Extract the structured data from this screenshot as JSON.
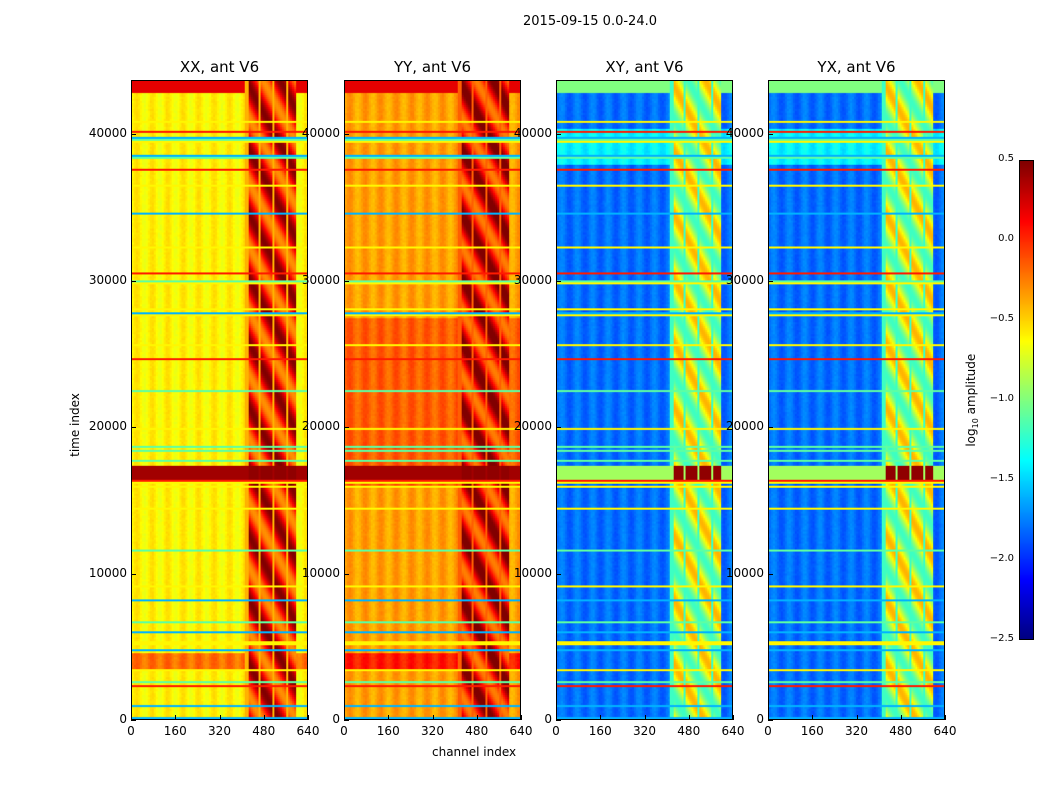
{
  "chart_data": {
    "type": "heatmap",
    "suptitle": "2015-09-15 0.0-24.0",
    "xlabel": "channel index",
    "ylabel": "time index",
    "xlim": [
      0,
      640
    ],
    "ylim": [
      0,
      43700
    ],
    "xticks": [
      "0",
      "160",
      "320",
      "480",
      "640"
    ],
    "xtick_values": [
      0,
      160,
      320,
      480,
      640
    ],
    "yticks": [
      "0",
      "10000",
      "20000",
      "30000",
      "40000"
    ],
    "ytick_values": [
      0,
      10000,
      20000,
      30000,
      40000
    ],
    "colorbar": {
      "label_main": "log",
      "label_sub": "10",
      "label_rest": " amplitude",
      "range": [
        -2.5,
        0.5
      ],
      "ticks": [
        "0.5",
        "0.0",
        "−0.5",
        "−1.0",
        "−1.5",
        "−2.0",
        "−2.5"
      ],
      "tick_values": [
        0.5,
        0.0,
        -0.5,
        -1.0,
        -1.5,
        -2.0,
        -2.5
      ],
      "colormap": "jet"
    },
    "panels": [
      {
        "title": "XX, ant V6",
        "base_level": -0.6,
        "rfi_level": 0.1,
        "band_level": 0.45,
        "band_off_level": 0.4
      },
      {
        "title": "YY, ant V6",
        "base_level": -0.35,
        "rfi_level": 0.15,
        "band_level": 0.45,
        "band_off_level": 0.4
      },
      {
        "title": "XY, ant V6",
        "base_level": -1.8,
        "rfi_level": -0.8,
        "band_level": 0.45,
        "band_off_level": -0.9
      },
      {
        "title": "YX, ant V6",
        "base_level": -1.8,
        "rfi_level": -0.8,
        "band_level": 0.45,
        "band_off_level": -0.9
      }
    ],
    "rfi_channel_ranges": [
      [
        420,
        460
      ],
      [
        470,
        510
      ],
      [
        520,
        560
      ],
      [
        570,
        600
      ]
    ],
    "bright_time_band": [
      16300,
      17400
    ]
  }
}
